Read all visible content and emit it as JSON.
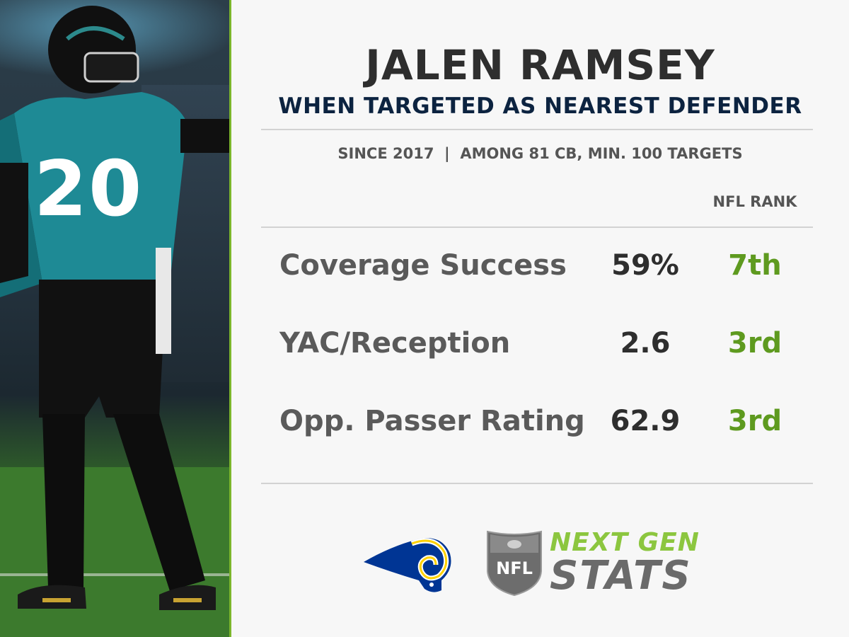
{
  "header": {
    "title": "JALEN RAMSEY",
    "subtitle": "WHEN TARGETED AS NEAREST DEFENDER",
    "note": "SINCE 2017  |  AMONG 81 CB, MIN. 100 TARGETS",
    "rank_column": "NFL RANK"
  },
  "stats": [
    {
      "label": "Coverage Success",
      "value": "59%",
      "rank": "7th"
    },
    {
      "label": "YAC/Reception",
      "value": "2.6",
      "rank": "3rd"
    },
    {
      "label": "Opp. Passer Rating",
      "value": "62.9",
      "rank": "3rd"
    }
  ],
  "photo": {
    "jersey_number": "20"
  },
  "branding": {
    "team_logo": "rams-logo",
    "league_logo": "nfl-shield",
    "league_text": "NFL",
    "stats_brand_line1": "NEXT GEN",
    "stats_brand_line2": "STATS"
  },
  "colors": {
    "accent_green": "#7bb52b",
    "rank_green": "#5e9a1f",
    "navy": "#0c2340",
    "title_gray": "#2e2e2e",
    "label_gray": "#5a5a5a"
  }
}
